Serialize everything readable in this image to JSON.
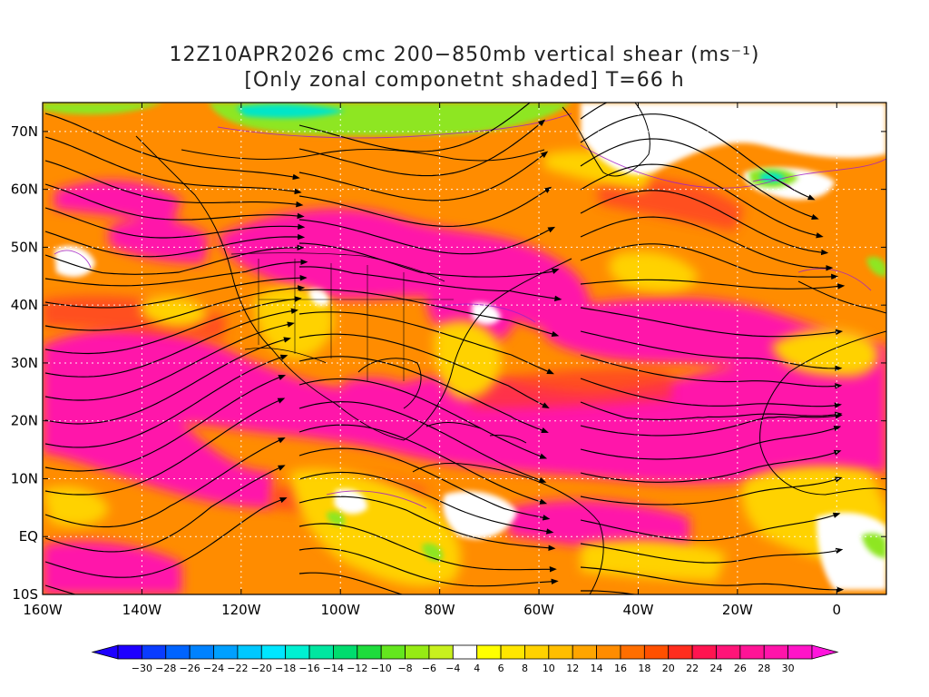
{
  "title_line1": "12Z10APR2026 cmc 200−850mb vertical shear (ms⁻¹)",
  "title_line2": "[Only zonal componetnt shaded] T=66 h",
  "map": {
    "lon_min": -160,
    "lon_max": 10,
    "lat_min": -10,
    "lat_max": 75,
    "lon_ticks": [
      -160,
      -140,
      -120,
      -100,
      -80,
      -60,
      -40,
      -20,
      0
    ],
    "lon_labels": [
      "160W",
      "140W",
      "120W",
      "100W",
      "80W",
      "60W",
      "40W",
      "20W",
      "0"
    ],
    "lat_ticks": [
      -10,
      0,
      10,
      20,
      30,
      40,
      50,
      60,
      70
    ],
    "lat_labels": [
      "10S",
      "EQ",
      "10N",
      "20N",
      "30N",
      "40N",
      "50N",
      "60N",
      "70N"
    ],
    "grid_lons": [
      -140,
      -120,
      -100,
      -80,
      -60,
      -40,
      -20,
      0
    ],
    "grid_lats": [
      0,
      10,
      20,
      30,
      40,
      50,
      60,
      70
    ]
  },
  "colorbar": {
    "labels": [
      "−30",
      "−28",
      "−26",
      "−24",
      "−22",
      "−20",
      "−18",
      "−16",
      "−14",
      "−12",
      "−10",
      "−8",
      "−6",
      "−4",
      "4",
      "6",
      "8",
      "10",
      "12",
      "14",
      "16",
      "18",
      "20",
      "22",
      "24",
      "26",
      "28",
      "30"
    ],
    "colors": [
      "#1e00ff",
      "#0a3cff",
      "#0064ff",
      "#0082ff",
      "#00a0ff",
      "#00c8ff",
      "#00e6ff",
      "#00f0d2",
      "#00e6a0",
      "#00dc6e",
      "#1edc3c",
      "#64e61e",
      "#96eb14",
      "#c8f01e",
      "#ffffff",
      "#ffff00",
      "#ffe600",
      "#ffd200",
      "#ffbe00",
      "#ffa500",
      "#ff8c00",
      "#ff6e00",
      "#ff5000",
      "#ff2d1e",
      "#ff1450",
      "#ff1478",
      "#ff1496",
      "#ff14aa",
      "#ff14c8"
    ]
  },
  "shear_fields": [
    {
      "name": "background",
      "color": "#ff8c00"
    },
    {
      "name": "pink-band-subtropical",
      "color": "#ff14aa"
    },
    {
      "name": "yellow-zones",
      "color": "#ffd200"
    },
    {
      "name": "white-low-shear",
      "color": "#ffffff"
    },
    {
      "name": "green-easterly",
      "color": "#8ee620"
    }
  ]
}
